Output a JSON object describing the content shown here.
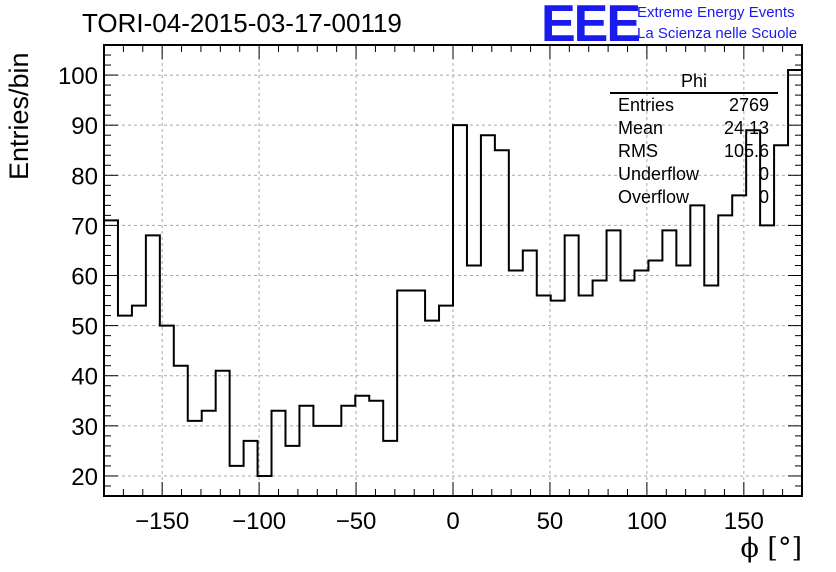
{
  "title": "TORI-04-2015-03-17-00119",
  "logo": {
    "text": "EEE",
    "line1": "Extreme Energy Events",
    "line2": "La Scienza nelle Scuole",
    "color": "#1a1aee"
  },
  "stats": {
    "name": "Phi",
    "rows": [
      {
        "label": "Entries",
        "value": "2769"
      },
      {
        "label": "Mean",
        "value": "24.13"
      },
      {
        "label": "RMS",
        "value": "105.6"
      },
      {
        "label": "Underflow",
        "value": "0"
      },
      {
        "label": "Overflow",
        "value": "0"
      }
    ]
  },
  "chart_data": {
    "type": "bar",
    "style": "step-histogram",
    "title": "TORI-04-2015-03-17-00119",
    "xlabel": "ϕ [°]",
    "ylabel": "Entries/bin",
    "xlim": [
      -180,
      180
    ],
    "ylim": [
      16,
      106
    ],
    "bin_width": 7.2,
    "x_ticks": [
      -150,
      -100,
      -50,
      0,
      50,
      100,
      150
    ],
    "y_ticks": [
      20,
      30,
      40,
      50,
      60,
      70,
      80,
      90,
      100
    ],
    "grid": true,
    "values": [
      71,
      52,
      54,
      68,
      50,
      42,
      31,
      33,
      41,
      22,
      27,
      20,
      33,
      26,
      34,
      30,
      30,
      34,
      36,
      35,
      27,
      57,
      57,
      51,
      54,
      90,
      62,
      88,
      85,
      61,
      65,
      56,
      55,
      68,
      56,
      59,
      69,
      59,
      61,
      63,
      69,
      62,
      74,
      58,
      72,
      76,
      89,
      70,
      86,
      101
    ]
  }
}
